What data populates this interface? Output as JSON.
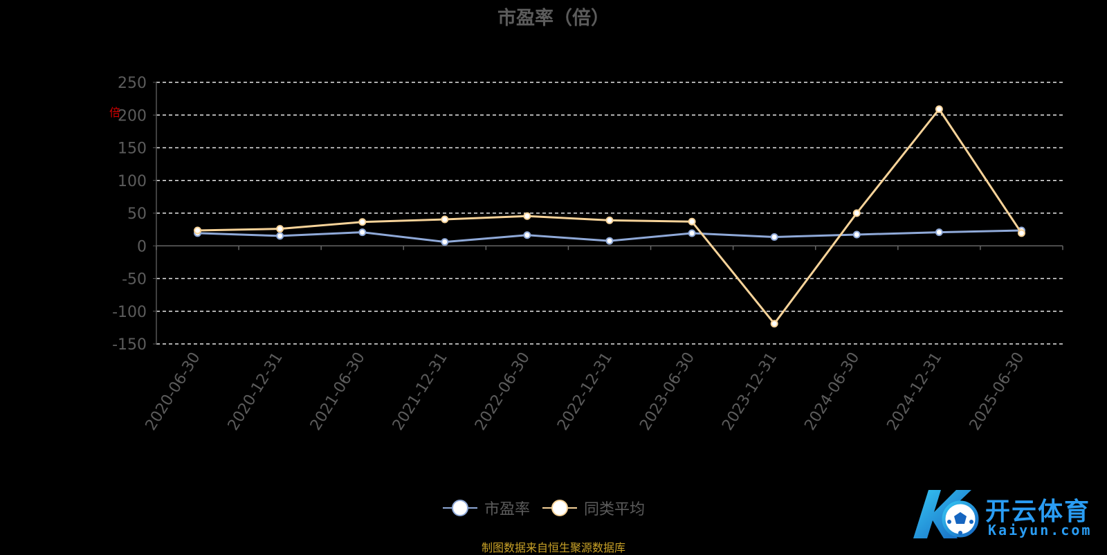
{
  "chart_data": {
    "type": "line",
    "title": "市盈率（倍）",
    "ylabel": "倍",
    "ylim": [
      -150,
      250
    ],
    "yticks": [
      250,
      200,
      150,
      100,
      50,
      0,
      -50,
      -100,
      -150
    ],
    "grid": true,
    "legend": "bottom-center",
    "categories": [
      "2020-06-30",
      "2020-12-31",
      "2021-06-30",
      "2021-12-31",
      "2022-06-30",
      "2022-12-31",
      "2023-06-30",
      "2023-12-31",
      "2024-06-30",
      "2024-12-31",
      "2025-06-30"
    ],
    "series": [
      {
        "name": "市盈率",
        "color": "#8fa9d8",
        "values": [
          19.5,
          15.2,
          20.8,
          6.0,
          16.4,
          7.6,
          19.3,
          13.5,
          17.2,
          20.8,
          23.5
        ]
      },
      {
        "name": "同类平均",
        "color": "#f7d399",
        "values": [
          23.5,
          26.0,
          36.5,
          40.5,
          45.5,
          39.0,
          37.0,
          -119.0,
          50.0,
          209.0,
          19.5
        ]
      }
    ]
  },
  "footer": "制图数据来自恒生聚源数据库",
  "watermark": {
    "cn": "开云体育",
    "en": "Kaiyun.com"
  }
}
